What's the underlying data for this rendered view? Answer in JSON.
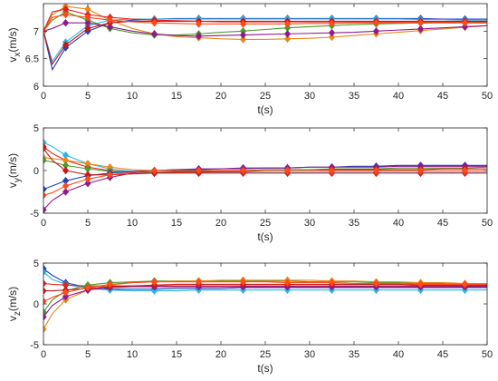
{
  "chart_data": [
    {
      "type": "line",
      "xlabel": "t(s)",
      "ylabel_base": "v",
      "ylabel_sub": "x",
      "ylabel_unit": "(m/s)",
      "xlim": [
        0,
        50
      ],
      "ylim": [
        6,
        7.5
      ],
      "xticks": [
        0,
        5,
        10,
        15,
        20,
        25,
        30,
        35,
        40,
        45,
        50
      ],
      "yticks": [
        6,
        6.5,
        7
      ],
      "x": [
        0,
        1,
        2.5,
        5,
        7.5,
        10,
        12.5,
        15,
        17.5,
        20,
        22.5,
        25,
        27.5,
        30,
        32.5,
        35,
        37.5,
        40,
        42.5,
        45,
        47.5,
        50
      ],
      "marker_x": [
        0,
        2.5,
        5,
        7.5,
        12.5,
        17.5,
        22.5,
        27.5,
        32.5,
        37.5,
        42.5,
        47.5
      ],
      "series": [
        {
          "color": "#1f3fbf",
          "values": [
            7.0,
            6.3,
            6.7,
            7.0,
            7.15,
            7.2,
            7.22,
            7.23,
            7.23,
            7.23,
            7.23,
            7.23,
            7.23,
            7.23,
            7.23,
            7.23,
            7.23,
            7.23,
            7.23,
            7.22,
            7.22,
            7.22
          ]
        },
        {
          "color": "#29b6e8",
          "values": [
            7.0,
            6.45,
            6.8,
            7.1,
            7.2,
            7.22,
            7.22,
            7.22,
            7.22,
            7.22,
            7.22,
            7.22,
            7.22,
            7.22,
            7.22,
            7.22,
            7.22,
            7.22,
            7.21,
            7.21,
            7.2,
            7.2
          ]
        },
        {
          "color": "#e8891a",
          "values": [
            7.0,
            7.3,
            7.45,
            7.4,
            7.2,
            7.05,
            6.95,
            6.9,
            6.88,
            6.86,
            6.85,
            6.85,
            6.86,
            6.87,
            6.89,
            6.92,
            6.95,
            6.98,
            7.01,
            7.04,
            7.07,
            7.1
          ]
        },
        {
          "color": "#4c9a2a",
          "values": [
            7.0,
            7.2,
            7.35,
            7.2,
            7.05,
            6.97,
            6.93,
            6.93,
            6.95,
            6.98,
            7.0,
            7.03,
            7.06,
            7.08,
            7.1,
            7.12,
            7.13,
            7.14,
            7.15,
            7.15,
            7.15,
            7.15
          ]
        },
        {
          "color": "#8e1a8e",
          "values": [
            7.0,
            7.05,
            7.15,
            7.15,
            7.08,
            7.0,
            6.95,
            6.92,
            6.91,
            6.92,
            6.93,
            6.94,
            6.95,
            6.96,
            6.97,
            6.98,
            7.0,
            7.02,
            7.04,
            7.06,
            7.08,
            7.1
          ]
        },
        {
          "color": "#e2231a",
          "values": [
            7.0,
            7.35,
            7.4,
            7.3,
            7.25,
            7.22,
            7.2,
            7.19,
            7.18,
            7.17,
            7.17,
            7.17,
            7.17,
            7.17,
            7.17,
            7.17,
            7.17,
            7.17,
            7.17,
            7.17,
            7.17,
            7.17
          ]
        },
        {
          "color": "#c41a1a",
          "values": [
            7.0,
            6.4,
            6.75,
            7.05,
            7.15,
            7.18,
            7.18,
            7.18,
            7.18,
            7.18,
            7.18,
            7.18,
            7.18,
            7.18,
            7.18,
            7.18,
            7.18,
            7.18,
            7.18,
            7.18,
            7.18,
            7.18
          ]
        },
        {
          "color": "#ff4a1a",
          "values": [
            7.0,
            7.25,
            7.3,
            7.25,
            7.2,
            7.17,
            7.15,
            7.14,
            7.13,
            7.13,
            7.13,
            7.13,
            7.13,
            7.14,
            7.14,
            7.15,
            7.15,
            7.15,
            7.15,
            7.15,
            7.15,
            7.15
          ]
        }
      ]
    },
    {
      "type": "line",
      "xlabel": "t(s)",
      "ylabel_base": "v",
      "ylabel_sub": "y",
      "ylabel_unit": "(m/s)",
      "xlim": [
        0,
        50
      ],
      "ylim": [
        -5,
        5
      ],
      "xticks": [
        0,
        5,
        10,
        15,
        20,
        25,
        30,
        35,
        40,
        45,
        50
      ],
      "yticks": [
        -5,
        0,
        5
      ],
      "x": [
        0,
        1,
        2.5,
        5,
        7.5,
        10,
        12.5,
        15,
        17.5,
        20,
        22.5,
        25,
        27.5,
        30,
        32.5,
        35,
        37.5,
        40,
        42.5,
        45,
        47.5,
        50
      ],
      "marker_x": [
        0,
        2.5,
        5,
        7.5,
        12.5,
        17.5,
        22.5,
        27.5,
        32.5,
        37.5,
        42.5,
        47.5
      ],
      "series": [
        {
          "color": "#29b6e8",
          "values": [
            3.3,
            2.8,
            1.8,
            0.8,
            0.2,
            -0.1,
            -0.2,
            -0.2,
            -0.2,
            -0.2,
            -0.2,
            -0.2,
            -0.2,
            -0.2,
            -0.2,
            -0.2,
            -0.2,
            -0.2,
            -0.2,
            -0.2,
            -0.2,
            -0.2
          ]
        },
        {
          "color": "#e2231a",
          "values": [
            2.8,
            2.0,
            1.2,
            0.4,
            0.0,
            -0.2,
            -0.3,
            -0.3,
            -0.3,
            -0.3,
            -0.3,
            -0.3,
            -0.3,
            -0.3,
            -0.3,
            -0.3,
            -0.3,
            -0.3,
            -0.3,
            -0.3,
            -0.3,
            -0.3
          ]
        },
        {
          "color": "#e8891a",
          "values": [
            1.5,
            1.4,
            1.2,
            0.8,
            0.4,
            0.1,
            0.0,
            0.0,
            0.0,
            0.0,
            0.0,
            0.0,
            0.0,
            0.0,
            0.0,
            0.0,
            0.0,
            0.0,
            0.0,
            0.0,
            0.0,
            0.0
          ]
        },
        {
          "color": "#4c9a2a",
          "values": [
            1.2,
            1.0,
            0.6,
            0.2,
            -0.1,
            -0.2,
            -0.2,
            -0.1,
            -0.1,
            0.0,
            0.0,
            0.1,
            0.1,
            0.1,
            0.2,
            0.2,
            0.2,
            0.3,
            0.3,
            0.3,
            0.3,
            0.4
          ]
        },
        {
          "color": "#1f3fbf",
          "values": [
            -2.2,
            -1.8,
            -1.2,
            -0.6,
            -0.3,
            -0.1,
            0.0,
            0.1,
            0.1,
            0.2,
            0.2,
            0.3,
            0.3,
            0.4,
            0.4,
            0.5,
            0.5,
            0.6,
            0.6,
            0.6,
            0.6,
            0.6
          ]
        },
        {
          "color": "#8e1a8e",
          "values": [
            -4.6,
            -3.5,
            -2.5,
            -1.5,
            -0.8,
            -0.3,
            0.0,
            0.1,
            0.2,
            0.2,
            0.3,
            0.3,
            0.3,
            0.4,
            0.4,
            0.4,
            0.4,
            0.5,
            0.5,
            0.5,
            0.5,
            0.5
          ]
        },
        {
          "color": "#c41a1a",
          "values": [
            2.6,
            1.2,
            0.0,
            -0.5,
            -0.5,
            -0.4,
            -0.3,
            -0.2,
            -0.2,
            -0.1,
            -0.1,
            0.0,
            0.0,
            0.0,
            0.1,
            0.1,
            0.1,
            0.1,
            0.1,
            0.2,
            0.2,
            0.2
          ]
        },
        {
          "color": "#ff4a1a",
          "values": [
            -2.9,
            -2.6,
            -1.8,
            -1.0,
            -0.5,
            -0.2,
            0.0,
            0.0,
            0.0,
            0.0,
            0.0,
            0.0,
            0.0,
            0.0,
            0.0,
            0.0,
            0.0,
            0.0,
            0.0,
            0.0,
            0.0,
            0.0
          ]
        }
      ]
    },
    {
      "type": "line",
      "xlabel": "t(s)",
      "ylabel_base": "v",
      "ylabel_sub": "z",
      "ylabel_unit": "(m/s)",
      "xlim": [
        0,
        50
      ],
      "ylim": [
        -5,
        5
      ],
      "xticks": [
        0,
        5,
        10,
        15,
        20,
        25,
        30,
        35,
        40,
        45,
        50
      ],
      "yticks": [
        -5,
        0,
        5
      ],
      "x": [
        0,
        1,
        2.5,
        5,
        7.5,
        10,
        12.5,
        15,
        17.5,
        20,
        22.5,
        25,
        27.5,
        30,
        32.5,
        35,
        37.5,
        40,
        42.5,
        45,
        47.5,
        50
      ],
      "marker_x": [
        0,
        2.5,
        5,
        7.5,
        12.5,
        17.5,
        22.5,
        27.5,
        32.5,
        37.5,
        42.5,
        47.5
      ],
      "series": [
        {
          "color": "#1f3fbf",
          "values": [
            4.3,
            3.5,
            2.6,
            2.0,
            1.8,
            1.8,
            1.8,
            1.9,
            1.9,
            1.9,
            2.0,
            2.0,
            2.0,
            2.0,
            2.0,
            2.0,
            2.0,
            2.0,
            2.0,
            2.0,
            2.0,
            2.0
          ]
        },
        {
          "color": "#29b6e8",
          "values": [
            3.9,
            3.0,
            2.4,
            1.9,
            1.7,
            1.6,
            1.6,
            1.6,
            1.7,
            1.7,
            1.7,
            1.7,
            1.7,
            1.7,
            1.7,
            1.7,
            1.7,
            1.7,
            1.7,
            1.7,
            1.7,
            1.7
          ]
        },
        {
          "color": "#e2231a",
          "values": [
            2.5,
            2.4,
            2.3,
            2.2,
            2.2,
            2.2,
            2.2,
            2.2,
            2.2,
            2.2,
            2.2,
            2.2,
            2.2,
            2.2,
            2.2,
            2.2,
            2.2,
            2.2,
            2.2,
            2.2,
            2.2,
            2.2
          ]
        },
        {
          "color": "#4c9a2a",
          "values": [
            -1.0,
            0.5,
            1.6,
            2.3,
            2.6,
            2.7,
            2.8,
            2.8,
            2.8,
            2.8,
            2.8,
            2.8,
            2.8,
            2.7,
            2.7,
            2.7,
            2.6,
            2.6,
            2.5,
            2.5,
            2.4,
            2.4
          ]
        },
        {
          "color": "#e8891a",
          "values": [
            -3.1,
            -1.2,
            0.5,
            1.7,
            2.3,
            2.6,
            2.7,
            2.8,
            2.8,
            2.9,
            2.9,
            2.9,
            2.9,
            2.9,
            2.8,
            2.8,
            2.7,
            2.7,
            2.6,
            2.6,
            2.5,
            2.5
          ]
        },
        {
          "color": "#8e1a8e",
          "values": [
            -1.6,
            -0.2,
            0.9,
            1.7,
            2.0,
            2.1,
            2.1,
            2.1,
            2.1,
            2.1,
            2.1,
            2.1,
            2.1,
            2.1,
            2.1,
            2.1,
            2.1,
            2.1,
            2.1,
            2.1,
            2.1,
            2.1
          ]
        },
        {
          "color": "#c41a1a",
          "values": [
            1.6,
            1.6,
            1.7,
            1.9,
            2.1,
            2.2,
            2.3,
            2.4,
            2.4,
            2.4,
            2.4,
            2.4,
            2.4,
            2.4,
            2.4,
            2.4,
            2.4,
            2.4,
            2.3,
            2.3,
            2.3,
            2.3
          ]
        },
        {
          "color": "#ff4a1a",
          "values": [
            0.3,
            0.8,
            1.4,
            2.0,
            2.4,
            2.6,
            2.7,
            2.7,
            2.7,
            2.7,
            2.7,
            2.7,
            2.6,
            2.6,
            2.6,
            2.5,
            2.5,
            2.5,
            2.4,
            2.4,
            2.4,
            2.4
          ]
        }
      ]
    }
  ]
}
